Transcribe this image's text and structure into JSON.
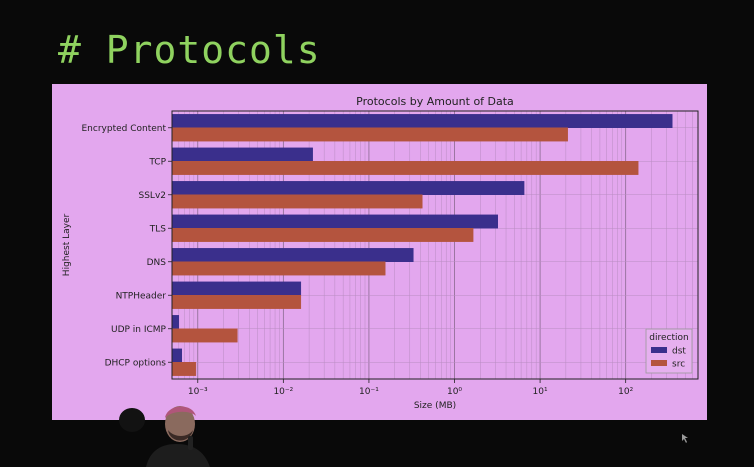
{
  "slide": {
    "title": "# Protocols"
  },
  "chart_data": {
    "type": "bar",
    "orientation": "horizontal",
    "title": "Protocols by Amount of Data",
    "xlabel": "Size (MB)",
    "ylabel": "Highest Layer",
    "xscale": "log",
    "xlim": [
      0.0005,
      700
    ],
    "xticks": [
      {
        "value": 0.001,
        "label": "10⁻³"
      },
      {
        "value": 0.01,
        "label": "10⁻²"
      },
      {
        "value": 0.1,
        "label": "10⁻¹"
      },
      {
        "value": 1,
        "label": "10⁰"
      },
      {
        "value": 10,
        "label": "10¹"
      },
      {
        "value": 100,
        "label": "10²"
      }
    ],
    "grid": true,
    "legend": {
      "title": "direction",
      "placement": "lower-right"
    },
    "categories": [
      "Encrypted Content",
      "TCP",
      "SSLv2",
      "TLS",
      "DNS",
      "NTPHeader",
      "UDP in ICMP",
      "DHCP options"
    ],
    "series": [
      {
        "name": "dst",
        "color": "#3a2f8c",
        "values": [
          350,
          0.022,
          6.5,
          3.2,
          0.33,
          0.016,
          0.0006,
          0.00065
        ]
      },
      {
        "name": "src",
        "color": "#b4543e",
        "values": [
          21,
          140,
          0.42,
          1.65,
          0.155,
          0.016,
          0.0029,
          0.00095
        ]
      }
    ]
  }
}
